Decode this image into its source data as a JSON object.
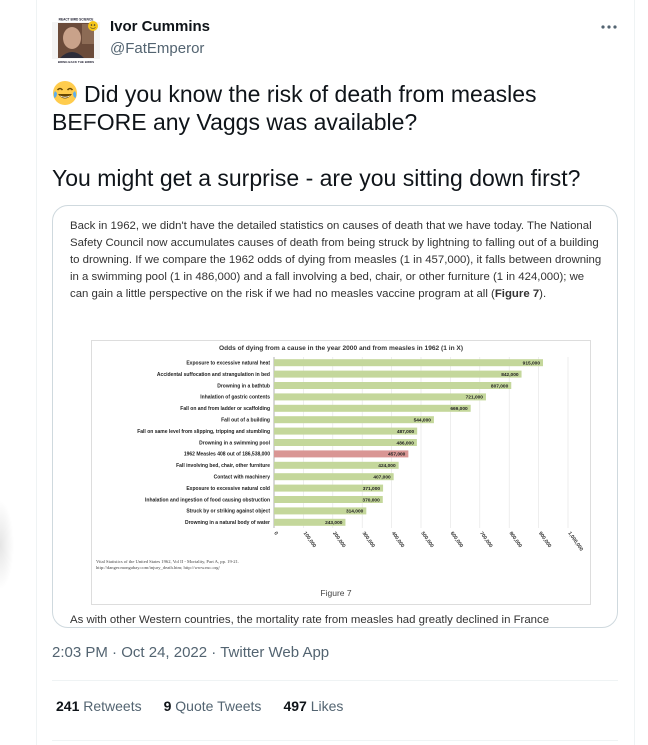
{
  "author": {
    "name": "Ivor Cummins",
    "handle": "@FatEmperor",
    "avatar_caption_top": "REACT BIRD SCIENCE",
    "avatar_caption_bottom": "BRING BACK THE BIRDS"
  },
  "tweet": {
    "line1": "Did you know the risk of death from measles BEFORE any Vaggs was available?",
    "line2": "You might get a surprise - are you sitting down first?",
    "emoji": "face-with-tears-of-joy"
  },
  "document": {
    "paragraph": "Back in 1962, we didn't have the detailed statistics on causes of death that we have today. The National Safety Council now accumulates causes of death from being struck by lightning to falling out of a building to drowning. If we compare the 1962 odds of dying from measles (1 in 457,000), it falls between drowning in a swimming pool (1 in 486,000) and a fall involving a bed, chair, or other furniture (1 in 424,000); we can gain a little perspective on the risk if we had no measles vaccine program at all (",
    "figure_ref": "Figure 7",
    "paragraph_end": ").",
    "figure_caption": "Figure 7",
    "cut_text": "As with other Western countries, the mortality rate from measles had greatly declined in France",
    "source_note": "Vital Statistics of the United States 1962, Vol II - Mortality, Part A, pp. 19-21. http://danger.mongabay.com/injury_death.htm; http://www.nsc.org/"
  },
  "chart_data": {
    "type": "bar",
    "orientation": "horizontal",
    "title": "Odds of dying from a cause in the year 2000 and from measles in 1962 (1 in X)",
    "categories": [
      "Exposure to excessive natural heat",
      "Accidental suffocation and strangulation in bed",
      "Drowning in a bathtub",
      "Inhalation of gastric contents",
      "Fall on and from ladder or scaffolding",
      "Fall out of a building",
      "Fall on same level from slipping, tripping and stumbling",
      "Drowning in a swimming pool",
      "1962 Measles 408 out of 186,538,000",
      "Fall involving bed, chair, other furniture",
      "Contact with machinery",
      "Exposure to excessive natural cold",
      "Inhalation and ingestion of food causing obstruction",
      "Struck by or striking against object",
      "Drowning in a natural body of water"
    ],
    "values": [
      915000,
      842000,
      807000,
      721000,
      669000,
      544000,
      487000,
      486000,
      457000,
      424000,
      407000,
      371000,
      370000,
      314000,
      243000
    ],
    "value_labels": [
      "915,000",
      "842,000",
      "807,000",
      "721,000",
      "669,000",
      "544,000",
      "487,000",
      "486,000",
      "457,000",
      "424,000",
      "407,000",
      "371,000",
      "370,000",
      "314,000",
      "243,000"
    ],
    "highlight_index": 8,
    "bar_color": "#c4d79b",
    "highlight_color": "#d99694",
    "xlim": [
      0,
      1000000
    ],
    "xticks": [
      "0",
      "100,000",
      "200,000",
      "300,000",
      "400,000",
      "500,000",
      "600,000",
      "700,000",
      "800,000",
      "900,000",
      "1,000,000"
    ],
    "grid": true
  },
  "meta": {
    "time": "2:03 PM",
    "date": "Oct 24, 2022",
    "source": "Twitter Web App",
    "sep": "·"
  },
  "stats": {
    "retweets": {
      "count": "241",
      "label": "Retweets"
    },
    "quotes": {
      "count": "9",
      "label": "Quote Tweets"
    },
    "likes": {
      "count": "497",
      "label": "Likes"
    }
  },
  "colors": {
    "text": "#0f1419",
    "secondary": "#536471",
    "border": "#cfd9de"
  }
}
